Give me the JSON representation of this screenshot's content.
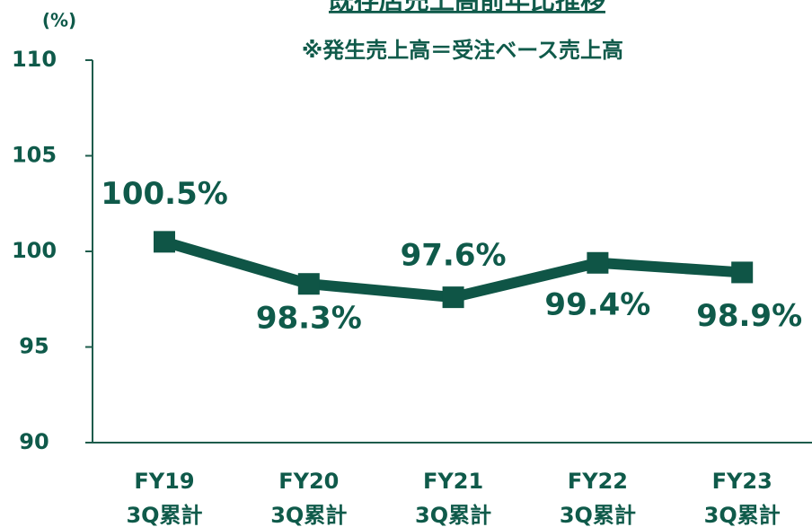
{
  "chart_data": {
    "type": "line",
    "title": "既存店売上高前年比推移",
    "subtitle": "※発生売上高＝受注ベース売上高",
    "y_label": "(%)",
    "categories": [
      [
        "FY19",
        "3Q累計"
      ],
      [
        "FY20",
        "3Q累計"
      ],
      [
        "FY21",
        "3Q累計"
      ],
      [
        "FY22",
        "3Q累計"
      ],
      [
        "FY23",
        "3Q累計"
      ]
    ],
    "series": [
      {
        "name": "既存店売上高前年比",
        "color": "#0f5546",
        "values": [
          100.5,
          98.3,
          97.6,
          99.4,
          98.9
        ],
        "value_labels": [
          "100.5%",
          "98.3%",
          "97.6%",
          "99.4%",
          "98.9%"
        ]
      }
    ],
    "ylim": [
      90,
      110
    ],
    "yticks": [
      90,
      95,
      100,
      105,
      110
    ],
    "grid": false
  }
}
